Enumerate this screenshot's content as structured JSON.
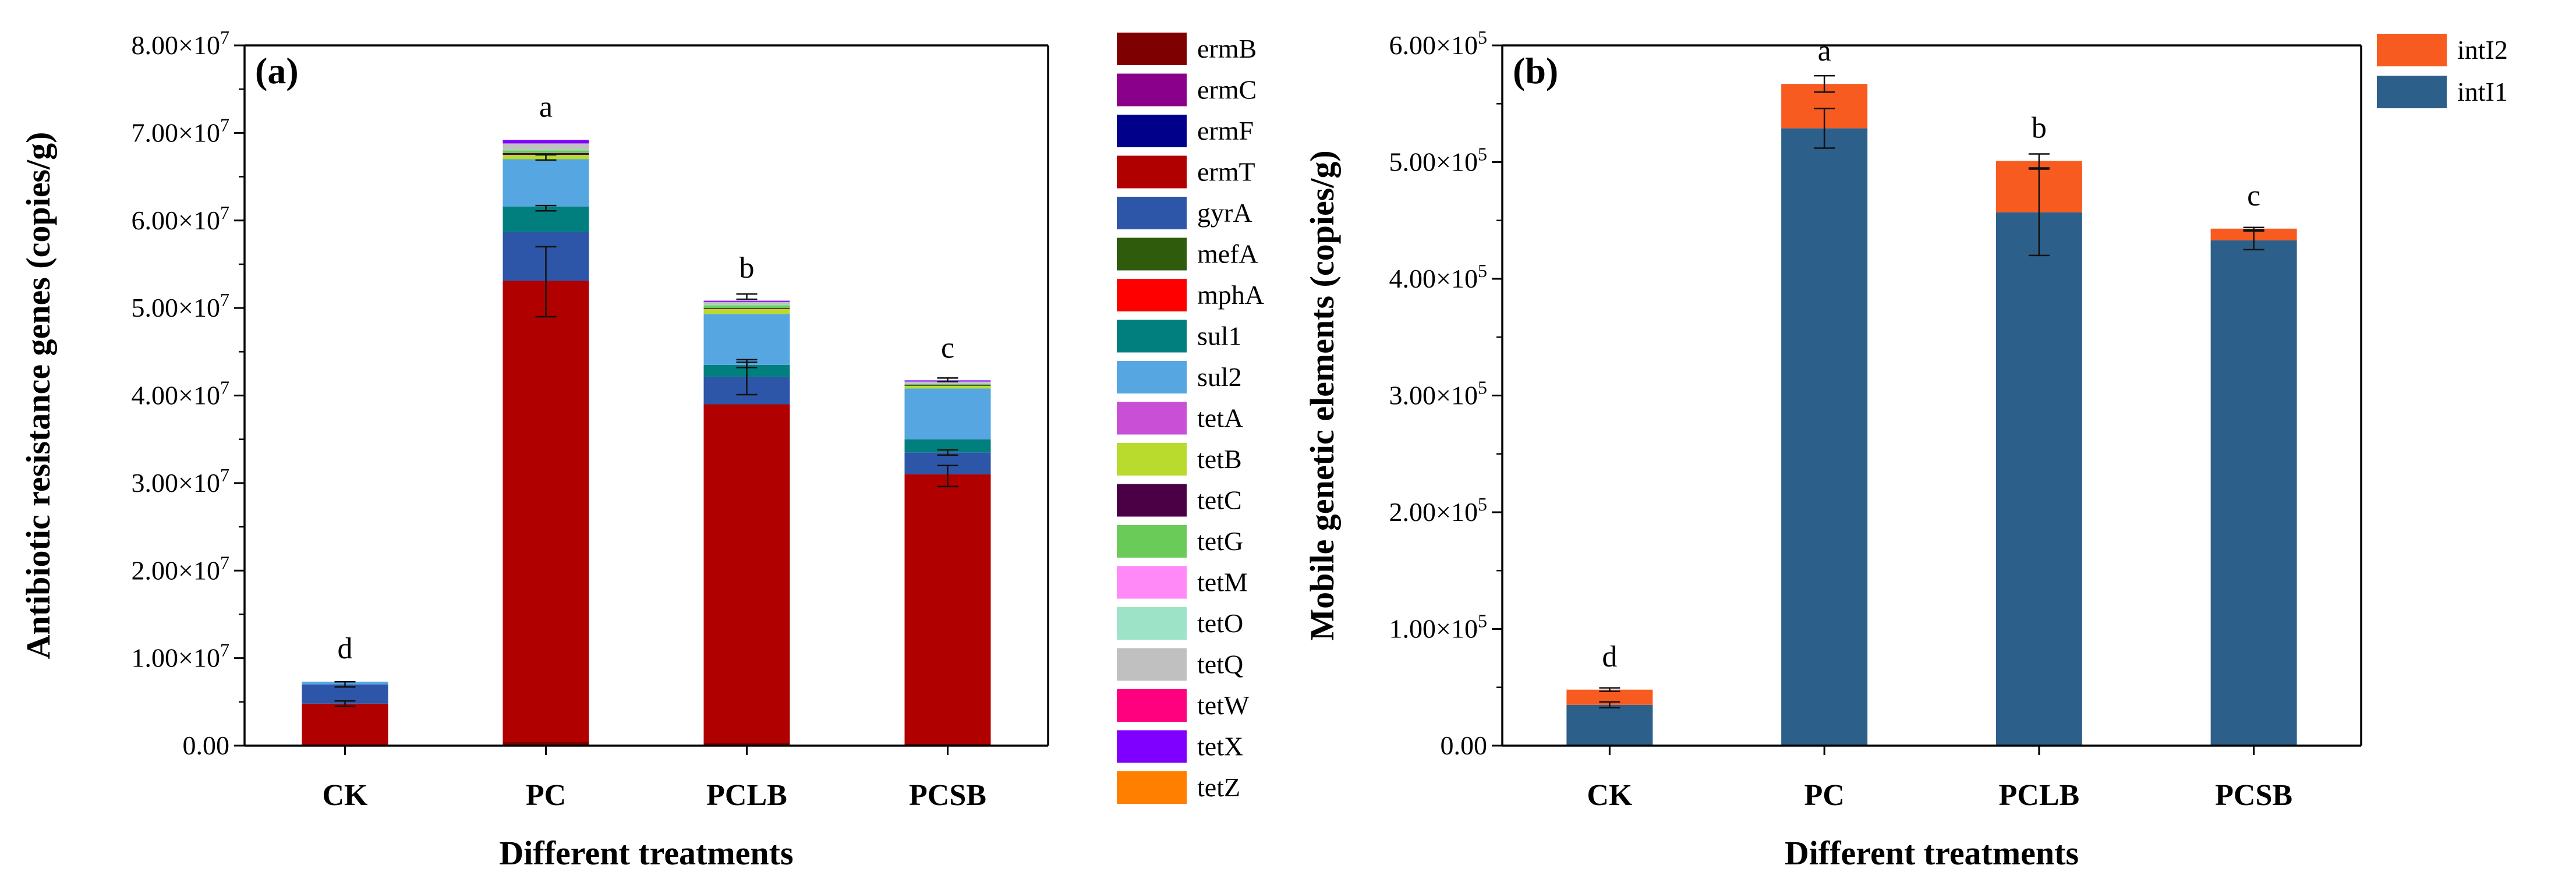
{
  "chart_data": [
    {
      "type": "bar",
      "stacked": true,
      "panel_label": "(a)",
      "title": "",
      "xlabel": "Different treatments",
      "ylabel": "Antibiotic resistance genes (copies/g)",
      "ylim": [
        0,
        80000000
      ],
      "yticks": [
        0,
        10000000,
        20000000,
        30000000,
        40000000,
        50000000,
        60000000,
        70000000,
        80000000
      ],
      "ytick_labels": [
        "0.00",
        "1.00×10^7",
        "2.00×10^7",
        "3.00×10^7",
        "4.00×10^7",
        "5.00×10^7",
        "6.00×10^7",
        "7.00×10^7",
        "8.00×10^7"
      ],
      "categories": [
        "CK",
        "PC",
        "PCLB",
        "PCSB"
      ],
      "significance": [
        "d",
        "a",
        "b",
        "c"
      ],
      "legend_position": "right",
      "series": [
        {
          "name": "ermB",
          "color": "#7f0000",
          "values": [
            0,
            400000,
            300000,
            200000
          ]
        },
        {
          "name": "ermC",
          "color": "#8b008b",
          "values": [
            0,
            0,
            0,
            0
          ]
        },
        {
          "name": "ermF",
          "color": "#00008b",
          "values": [
            0,
            0,
            0,
            0
          ]
        },
        {
          "name": "ermT",
          "color": "#b10000",
          "values": [
            4800000,
            52700000,
            38700000,
            30800000
          ]
        },
        {
          "name": "gyrA",
          "color": "#2d56a8",
          "values": [
            2200000,
            5600000,
            3100000,
            2500000
          ]
        },
        {
          "name": "mefA",
          "color": "#2f5b0c",
          "values": [
            0,
            0,
            0,
            0
          ]
        },
        {
          "name": "mphA",
          "color": "#ff0000",
          "values": [
            0,
            0,
            0,
            0
          ]
        },
        {
          "name": "sul1",
          "color": "#017f7f",
          "values": [
            0,
            2900000,
            1400000,
            1500000
          ]
        },
        {
          "name": "sul2",
          "color": "#56a6e2",
          "values": [
            300000,
            5400000,
            5800000,
            5800000
          ]
        },
        {
          "name": "tetA",
          "color": "#c84fd6",
          "values": [
            0,
            0,
            0,
            0
          ]
        },
        {
          "name": "tetB",
          "color": "#b9db2e",
          "values": [
            0,
            500000,
            600000,
            300000
          ]
        },
        {
          "name": "tetC",
          "color": "#4b0046",
          "values": [
            0,
            200000,
            100000,
            50000
          ]
        },
        {
          "name": "tetG",
          "color": "#6bcb58",
          "values": [
            0,
            300000,
            300000,
            150000
          ]
        },
        {
          "name": "tetM",
          "color": "#ff8af7",
          "values": [
            0,
            0,
            0,
            0
          ]
        },
        {
          "name": "tetO",
          "color": "#9de3c7",
          "values": [
            0,
            100000,
            100000,
            50000
          ]
        },
        {
          "name": "tetQ",
          "color": "#c0c0c0",
          "values": [
            0,
            700000,
            300000,
            250000
          ]
        },
        {
          "name": "tetW",
          "color": "#ff007f",
          "values": [
            0,
            0,
            0,
            0
          ]
        },
        {
          "name": "tetX",
          "color": "#8000ff",
          "values": [
            0,
            400000,
            100000,
            50000
          ]
        },
        {
          "name": "tetZ",
          "color": "#ff8000",
          "values": [
            0,
            0,
            0,
            0
          ]
        }
      ],
      "error_bars": [
        {
          "category": "CK",
          "value": 4800000,
          "err": 300000
        },
        {
          "category": "CK",
          "value": 7000000,
          "err": 300000
        },
        {
          "category": "PC",
          "value": 53000000,
          "err": 4000000
        },
        {
          "category": "PC",
          "value": 61400000,
          "err": 300000
        },
        {
          "category": "PC",
          "value": 67200000,
          "err": 300000
        },
        {
          "category": "PCLB",
          "value": 42100000,
          "err": 2000000
        },
        {
          "category": "PCLB",
          "value": 43500000,
          "err": 300000
        },
        {
          "category": "PCLB",
          "value": 51300000,
          "err": 300000
        },
        {
          "category": "PCSB",
          "value": 30800000,
          "err": 1200000
        },
        {
          "category": "PCSB",
          "value": 33500000,
          "err": 300000
        },
        {
          "category": "PCSB",
          "value": 41800000,
          "err": 200000
        }
      ]
    },
    {
      "type": "bar",
      "stacked": true,
      "panel_label": "(b)",
      "title": "",
      "xlabel": "Different treatments",
      "ylabel": "Mobile genetic elements (copies/g)",
      "ylim": [
        0,
        600000
      ],
      "yticks": [
        0,
        100000,
        200000,
        300000,
        400000,
        500000,
        600000
      ],
      "ytick_labels": [
        "0.00",
        "1.00×10^5",
        "2.00×10^5",
        "3.00×10^5",
        "4.00×10^5",
        "5.00×10^5",
        "6.00×10^5"
      ],
      "categories": [
        "CK",
        "PC",
        "PCLB",
        "PCSB"
      ],
      "significance": [
        "d",
        "a",
        "b",
        "c"
      ],
      "legend_position": "top-right",
      "legend_order": [
        "intI2",
        "intI1"
      ],
      "series": [
        {
          "name": "intI1",
          "color": "#2c5f8a",
          "values": [
            35000,
            529000,
            457000,
            433000
          ]
        },
        {
          "name": "intI2",
          "color": "#f85b20",
          "values": [
            13000,
            38000,
            44000,
            10000
          ]
        }
      ],
      "error_bars": [
        {
          "category": "CK",
          "value": 35000,
          "err": 2500
        },
        {
          "category": "CK",
          "value": 48000,
          "err": 1500
        },
        {
          "category": "PC",
          "value": 529000,
          "err": 17000
        },
        {
          "category": "PC",
          "value": 567000,
          "err": 7000
        },
        {
          "category": "PCLB",
          "value": 457000,
          "err": 37000
        },
        {
          "category": "PCLB",
          "value": 501000,
          "err": 6000
        },
        {
          "category": "PCSB",
          "value": 433000,
          "err": 8000
        },
        {
          "category": "PCSB",
          "value": 443000,
          "err": 1000
        }
      ]
    }
  ]
}
